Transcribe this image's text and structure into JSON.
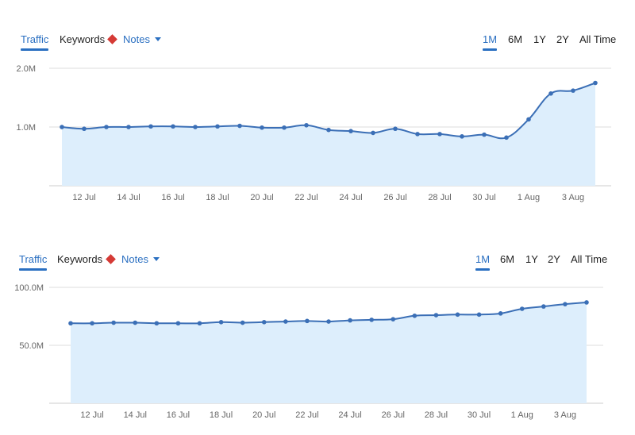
{
  "panels": [
    {
      "tabs": {
        "traffic": "Traffic",
        "keywords": "Keywords",
        "notes": "Notes"
      },
      "ranges": [
        "1M",
        "6M",
        "1Y",
        "2Y",
        "All Time"
      ],
      "active_range": "1M"
    },
    {
      "tabs": {
        "traffic": "Traffic",
        "keywords": "Keywords",
        "notes": "Notes"
      },
      "ranges": [
        "1M",
        "6M",
        "1Y",
        "2Y",
        "All Time"
      ],
      "active_range": "1M"
    }
  ],
  "colors": {
    "accent": "#2a6fc1",
    "line": "#3b6fb6",
    "fill": "#ddeefc",
    "notes_marker": "#d53a35",
    "grid": "#dddddd"
  },
  "chart_data": [
    {
      "type": "area",
      "x": [
        "11 Jul",
        "12 Jul",
        "13 Jul",
        "14 Jul",
        "15 Jul",
        "16 Jul",
        "17 Jul",
        "18 Jul",
        "19 Jul",
        "20 Jul",
        "21 Jul",
        "22 Jul",
        "23 Jul",
        "24 Jul",
        "25 Jul",
        "26 Jul",
        "27 Jul",
        "28 Jul",
        "29 Jul",
        "30 Jul",
        "31 Jul",
        "1 Aug",
        "2 Aug",
        "3 Aug",
        "4 Aug"
      ],
      "series": [
        {
          "values": [
            1.0,
            0.97,
            1.0,
            1.0,
            1.01,
            1.01,
            1.0,
            1.01,
            1.02,
            0.99,
            0.99,
            1.03,
            0.95,
            0.93,
            0.9,
            0.97,
            0.88,
            0.88,
            0.84,
            0.87,
            0.82,
            1.13,
            1.57,
            1.62,
            1.75
          ]
        }
      ],
      "unit": "M",
      "xticks": [
        "12 Jul",
        "14 Jul",
        "16 Jul",
        "18 Jul",
        "20 Jul",
        "22 Jul",
        "24 Jul",
        "26 Jul",
        "28 Jul",
        "30 Jul",
        "1 Aug",
        "3 Aug"
      ],
      "yticks": [
        "2.0M",
        "1.0M"
      ],
      "ylim": [
        0,
        2.0
      ],
      "xlabel": "",
      "ylabel": "",
      "title": ""
    },
    {
      "type": "area",
      "x": [
        "11 Jul",
        "12 Jul",
        "13 Jul",
        "14 Jul",
        "15 Jul",
        "16 Jul",
        "17 Jul",
        "18 Jul",
        "19 Jul",
        "20 Jul",
        "21 Jul",
        "22 Jul",
        "23 Jul",
        "24 Jul",
        "25 Jul",
        "26 Jul",
        "27 Jul",
        "28 Jul",
        "29 Jul",
        "30 Jul",
        "31 Jul",
        "1 Aug",
        "2 Aug",
        "3 Aug",
        "4 Aug"
      ],
      "series": [
        {
          "values": [
            69.0,
            69.0,
            69.5,
            69.5,
            69.0,
            69.0,
            69.0,
            70.0,
            69.5,
            70.0,
            70.5,
            71.0,
            70.5,
            71.5,
            72.0,
            72.5,
            75.5,
            76.0,
            76.5,
            76.5,
            77.5,
            81.5,
            83.5,
            85.5,
            87.0
          ]
        }
      ],
      "unit": "M",
      "xticks": [
        "12 Jul",
        "14 Jul",
        "16 Jul",
        "18 Jul",
        "20 Jul",
        "22 Jul",
        "24 Jul",
        "26 Jul",
        "28 Jul",
        "30 Jul",
        "1 Aug",
        "3 Aug"
      ],
      "yticks": [
        "100.0M",
        "50.0M"
      ],
      "ylim": [
        0,
        100
      ],
      "xlabel": "",
      "ylabel": "",
      "title": ""
    }
  ]
}
